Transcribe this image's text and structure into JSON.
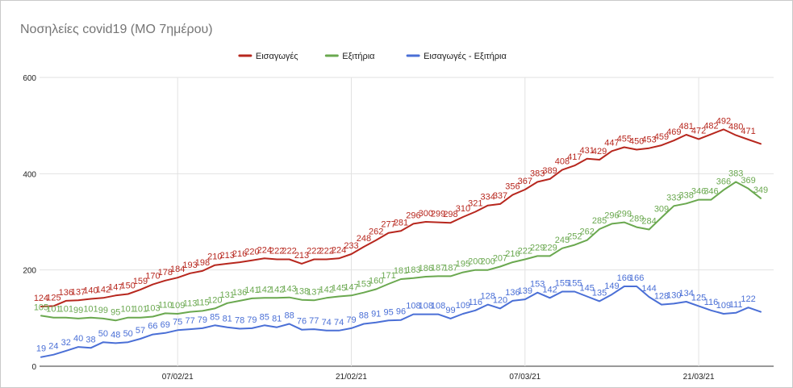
{
  "chart_data": {
    "type": "line",
    "title": "Νοσηλείες covid19 (ΜΟ 7ημέρου)",
    "xlabel": "",
    "ylabel": "",
    "ylim": [
      0,
      600
    ],
    "yticks": [
      0,
      200,
      400,
      600
    ],
    "xticks": [
      {
        "index": 11,
        "label": "07/02/21"
      },
      {
        "index": 25,
        "label": "21/02/21"
      },
      {
        "index": 39,
        "label": "07/03/21"
      },
      {
        "index": 53,
        "label": "21/03/21"
      }
    ],
    "grid": true,
    "legend_position": "top-center",
    "point_count": 59,
    "series": [
      {
        "name": "Εισαγωγές",
        "color": "#b7271e",
        "values": [
          124,
          125,
          136,
          137,
          140,
          142,
          147,
          150,
          159,
          170,
          178,
          184,
          193,
          198,
          210,
          213,
          216,
          220,
          224,
          222,
          222,
          213,
          222,
          222,
          224,
          233,
          248,
          262,
          277,
          281,
          296,
          300,
          299,
          298,
          310,
          321,
          334,
          337,
          356,
          367,
          383,
          389,
          408,
          417,
          431,
          429,
          447,
          455,
          450,
          453,
          459,
          469,
          481,
          472,
          482,
          492,
          480,
          471,
          462
        ],
        "labels": [
          "124",
          "125",
          "136",
          "137",
          "140",
          "142",
          "147",
          "150",
          "159",
          "170",
          "178",
          "184",
          "193",
          "198",
          "210",
          "213",
          "216",
          "220",
          "224",
          "222",
          "222",
          "213",
          "222",
          "222",
          "224",
          "233",
          "248",
          "262",
          "277",
          "281",
          "296",
          "300",
          "299",
          "298",
          "310",
          "321",
          "334",
          "337",
          "356",
          "367",
          "383",
          "389",
          "408",
          "417",
          "431",
          "429",
          "447",
          "455",
          "450",
          "453",
          "459",
          "469",
          "481",
          "472",
          "482",
          "492",
          "480",
          "471",
          ""
        ]
      },
      {
        "name": "Εξιτήρια",
        "color": "#6aa84f",
        "values": [
          105,
          101,
          101,
          99,
          101,
          99,
          95,
          101,
          101,
          103,
          110,
          109,
          113,
          115,
          120,
          131,
          136,
          141,
          142,
          142,
          143,
          138,
          137,
          142,
          145,
          147,
          153,
          160,
          171,
          181,
          183,
          186,
          187,
          187,
          195,
          200,
          200,
          207,
          216,
          222,
          229,
          229,
          245,
          252,
          262,
          285,
          296,
          299,
          289,
          284,
          309,
          333,
          338,
          346,
          346,
          366,
          383,
          369,
          349
        ],
        "labels": [
          "105",
          "101",
          "101",
          "99",
          "101",
          "99",
          "95",
          "101",
          "101",
          "103",
          "110",
          "109",
          "113",
          "115",
          "120",
          "131",
          "136",
          "141",
          "142",
          "142",
          "143",
          "138",
          "137",
          "142",
          "145",
          "147",
          "153",
          "160",
          "171",
          "181",
          "183",
          "186",
          "187",
          "187",
          "195",
          "200",
          "200",
          "207",
          "216",
          "222",
          "229",
          "229",
          "245",
          "252",
          "262",
          "285",
          "296",
          "299",
          "289",
          "284",
          "309",
          "333",
          "338",
          "346",
          "346",
          "366",
          "383",
          "369",
          "349"
        ]
      },
      {
        "name": "Εισαγωγές - Εξιτήρια",
        "color": "#4a6fd6",
        "values": [
          19,
          24,
          32,
          40,
          38,
          50,
          48,
          50,
          57,
          66,
          69,
          75,
          77,
          79,
          85,
          81,
          78,
          79,
          85,
          81,
          88,
          76,
          77,
          74,
          74,
          79,
          88,
          91,
          95,
          96,
          108,
          108,
          108,
          99,
          109,
          116,
          128,
          120,
          136,
          139,
          153,
          142,
          155,
          155,
          145,
          135,
          149,
          166,
          166,
          144,
          128,
          130,
          134,
          125,
          116,
          109,
          111,
          122,
          113
        ],
        "labels": [
          "19",
          "24",
          "32",
          "40",
          "38",
          "50",
          "48",
          "50",
          "57",
          "66",
          "69",
          "75",
          "77",
          "79",
          "85",
          "81",
          "78",
          "79",
          "85",
          "81",
          "88",
          "76",
          "77",
          "74",
          "74",
          "79",
          "88",
          "91",
          "95",
          "96",
          "108",
          "108",
          "108",
          "99",
          "109",
          "116",
          "128",
          "120",
          "136",
          "139",
          "153",
          "142",
          "155",
          "155",
          "145",
          "135",
          "149",
          "166",
          "166",
          "144",
          "128",
          "130",
          "134",
          "125",
          "116",
          "109",
          "111",
          "122",
          ""
        ]
      }
    ]
  }
}
